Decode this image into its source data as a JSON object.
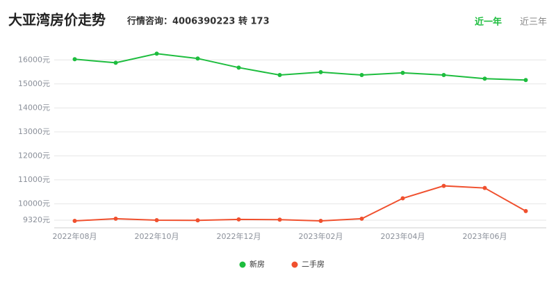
{
  "chart_data": {
    "type": "line",
    "title": "大亚湾房价走势",
    "subtitle": "行情咨询：4006390223 转 173",
    "tabs": [
      "近一年",
      "近三年"
    ],
    "categories": [
      "2022年08月",
      null,
      "2022年10月",
      null,
      "2022年12月",
      null,
      "2023年02月",
      null,
      "2023年04月",
      null,
      "2023年06月",
      null
    ],
    "series": [
      {
        "name": "新房",
        "color": "#1dbd3e",
        "values": [
          16030,
          15880,
          16260,
          16060,
          15680,
          15370,
          15490,
          15370,
          15460,
          15370,
          15220,
          15160
        ]
      },
      {
        "name": "二手房",
        "color": "#f0502e",
        "values": [
          9290,
          9380,
          9320,
          9310,
          9350,
          9340,
          9290,
          9380,
          10230,
          10750,
          10660,
          9700
        ]
      }
    ],
    "ylim": [
      9000,
      16500
    ],
    "yticks": [
      {
        "value": 9320,
        "label": "9320元"
      },
      {
        "value": 10000,
        "label": "10000元"
      },
      {
        "value": 11000,
        "label": "11000元"
      },
      {
        "value": 12000,
        "label": "12000元"
      },
      {
        "value": 13000,
        "label": "13000元"
      },
      {
        "value": 14000,
        "label": "14000元"
      },
      {
        "value": 15000,
        "label": "15000元"
      },
      {
        "value": 16000,
        "label": "16000元"
      }
    ],
    "grid": true,
    "legend": "bottom"
  }
}
